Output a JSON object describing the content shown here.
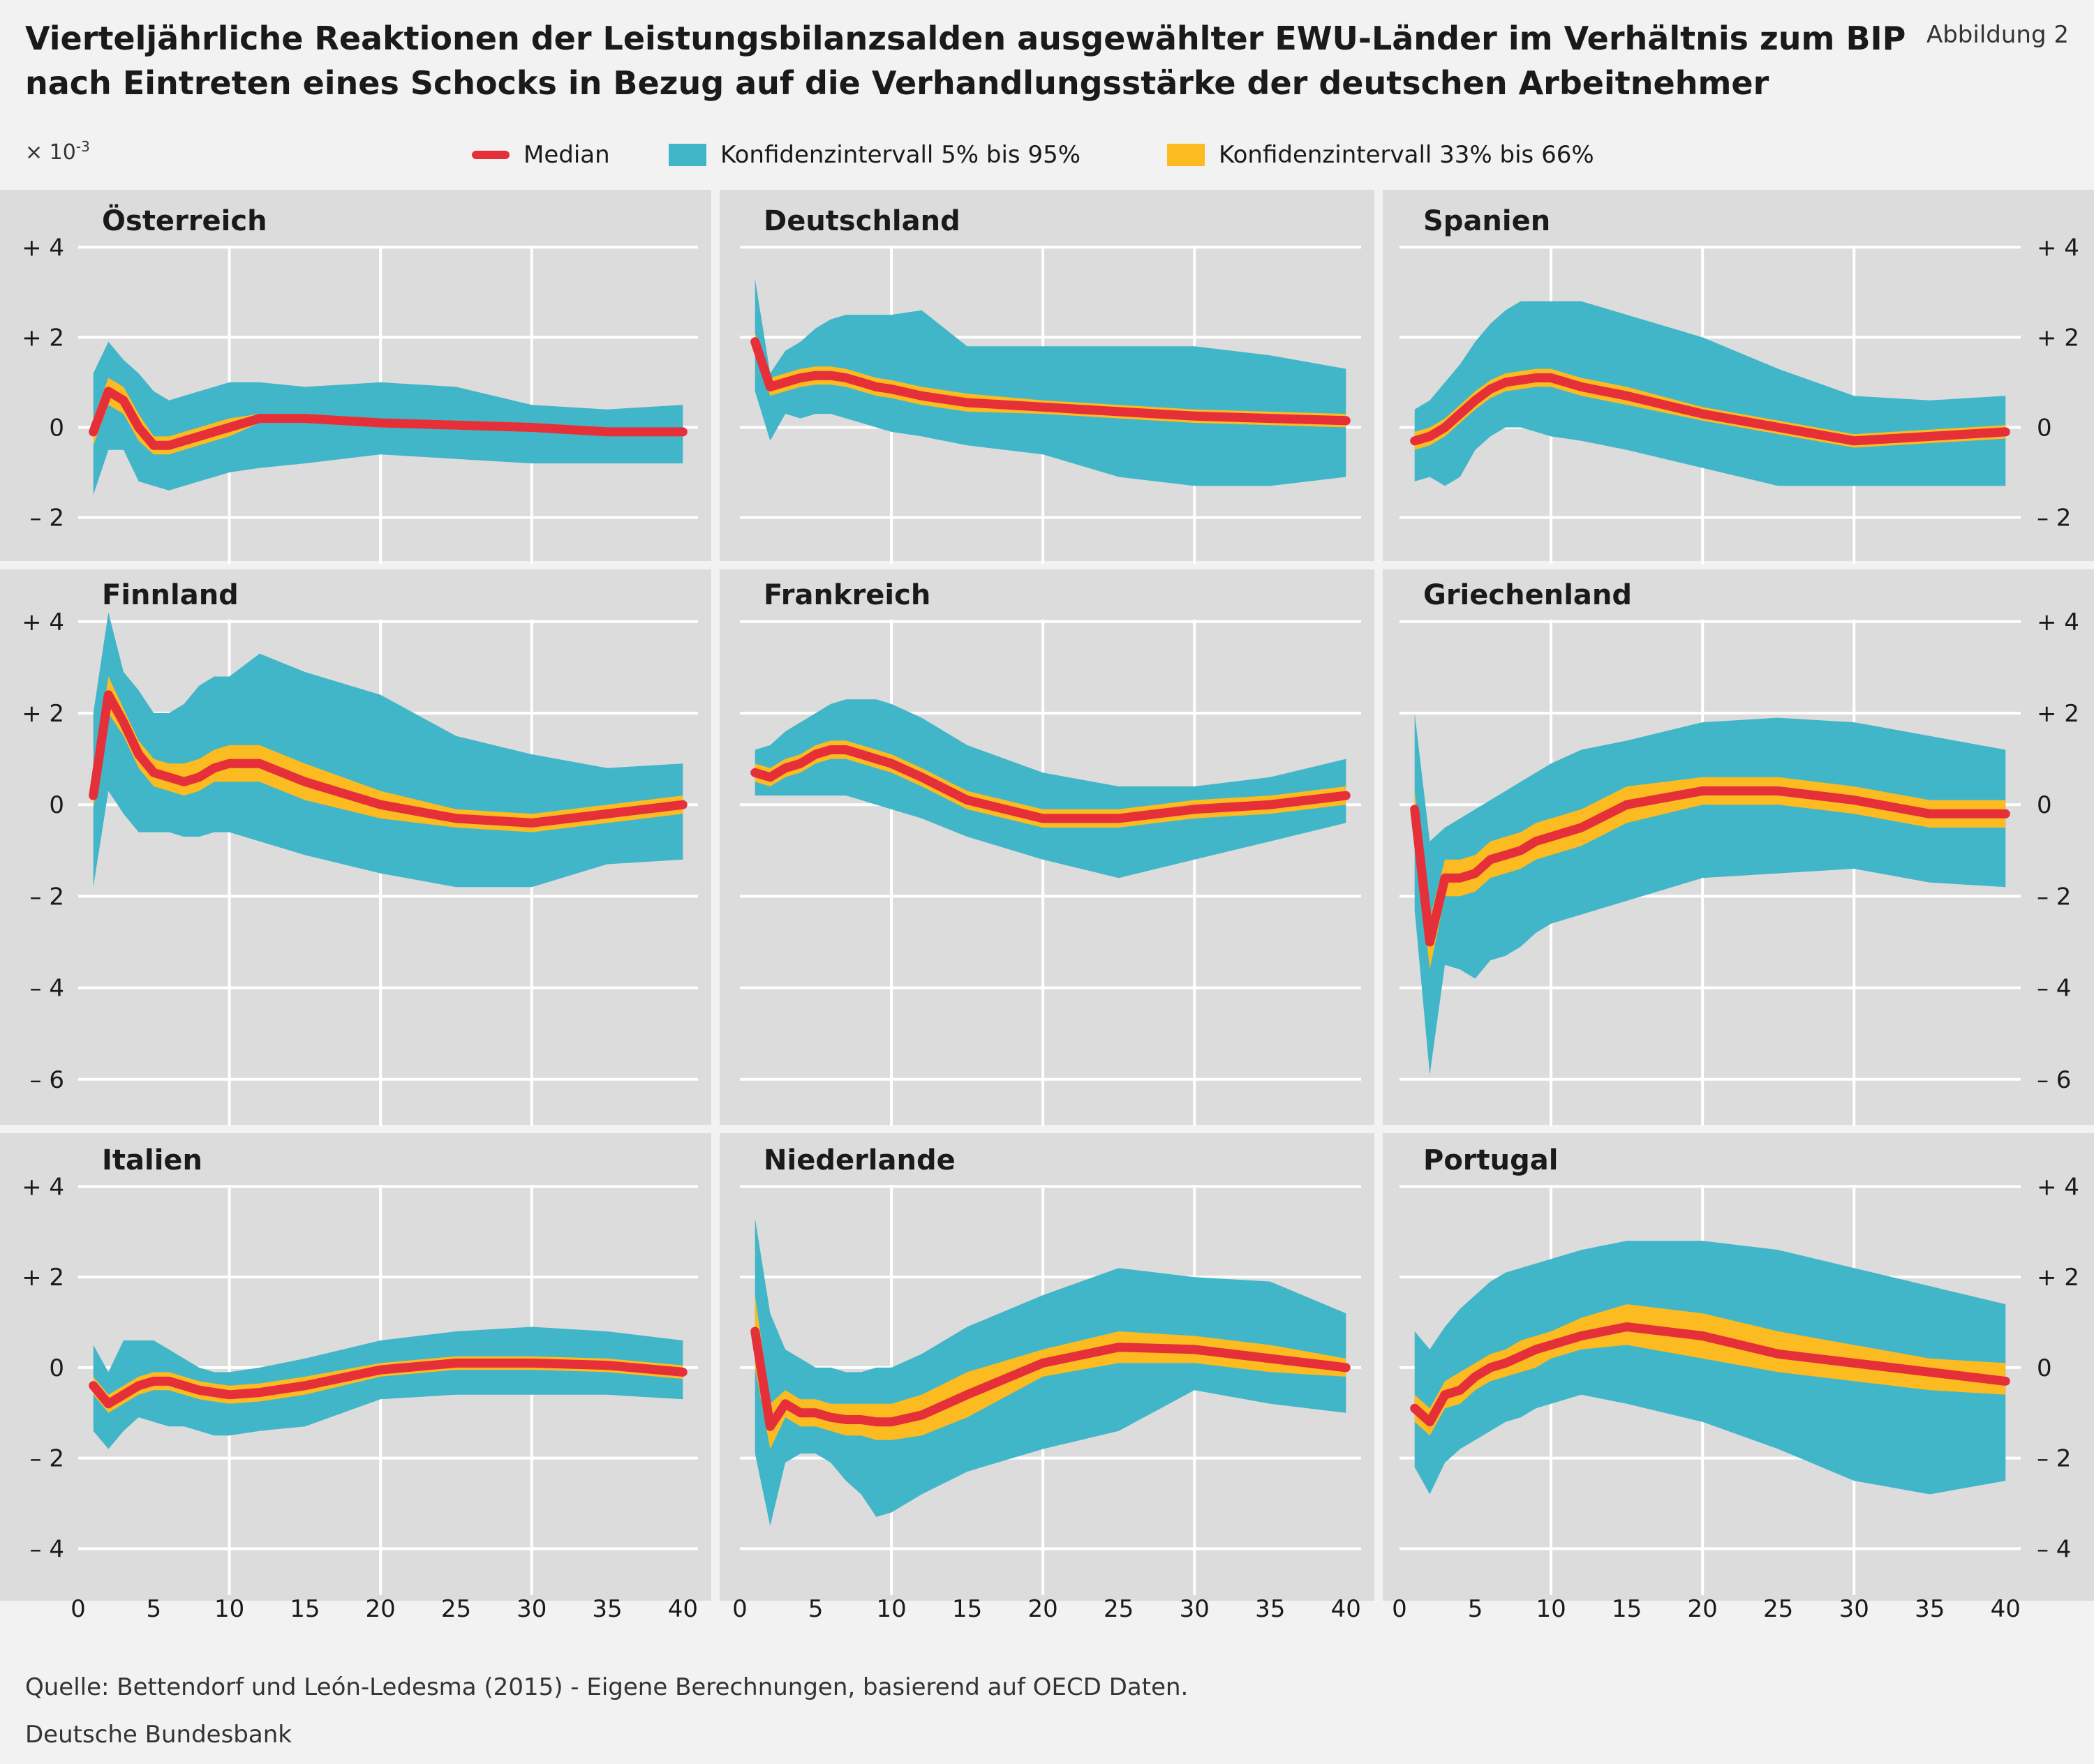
{
  "header": {
    "title_line1": "Vierteljährliche Reaktionen der Leistungsbilanzsalden ausgewählter EWU-Länder im Verhältnis zum BIP",
    "title_line2": "nach Eintreten eines Schocks in Bezug auf die Verhandlungsstärke der deutschen Arbeitnehmer",
    "figure_label": "Abbildung 2",
    "unit_base": "× 10",
    "unit_exp": "-3"
  },
  "legend": {
    "median": "Median",
    "ci_90": "Konfidenzintervall 5% bis 95%",
    "ci_33": "Konfidenzintervall 33% bis 66%"
  },
  "colors": {
    "median": "#e5303a",
    "ci_90": "#41b6c8",
    "ci_33": "#fbbb21",
    "plot_bg": "#dcdcdc",
    "grid": "#ffffff"
  },
  "footer": {
    "source": "Quelle: Bettendorf und León-Ledesma (2015) - Eigene Berechnungen, basierend auf OECD Daten.",
    "credit": "Deutsche Bundesbank"
  },
  "chart_data": [
    {
      "type": "area",
      "title": "Österreich",
      "x": [
        1,
        2,
        3,
        4,
        5,
        6,
        7,
        8,
        9,
        10,
        12,
        15,
        20,
        25,
        30,
        35,
        40
      ],
      "median": [
        -0.1,
        0.8,
        0.6,
        0,
        -0.4,
        -0.4,
        -0.3,
        -0.2,
        -0.1,
        0,
        0.2,
        0.2,
        0.1,
        0.05,
        0,
        -0.1,
        -0.1
      ],
      "ci_90_upper": [
        1.2,
        1.9,
        1.5,
        1.2,
        0.8,
        0.6,
        0.7,
        0.8,
        0.9,
        1,
        1,
        0.9,
        1,
        0.9,
        0.5,
        0.4,
        0.5
      ],
      "ci_90_lower": [
        -1.5,
        -0.5,
        -0.5,
        -1.2,
        -1.3,
        -1.4,
        -1.3,
        -1.2,
        -1.1,
        -1,
        -0.9,
        -0.8,
        -0.6,
        -0.7,
        -0.8,
        -0.8,
        -0.8
      ],
      "ci_33_upper": [
        0.2,
        1.1,
        0.9,
        0.3,
        -0.2,
        -0.2,
        -0.1,
        0,
        0.1,
        0.2,
        0.3,
        0.3,
        0.2,
        0.15,
        0.1,
        0,
        0
      ],
      "ci_33_lower": [
        -0.4,
        0.5,
        0.3,
        -0.3,
        -0.6,
        -0.6,
        -0.5,
        -0.4,
        -0.3,
        -0.2,
        0.1,
        0.1,
        0,
        -0.05,
        -0.1,
        -0.2,
        -0.2
      ]
    },
    {
      "type": "area",
      "title": "Deutschland",
      "x": [
        1,
        2,
        3,
        4,
        5,
        6,
        7,
        8,
        9,
        10,
        12,
        15,
        20,
        25,
        30,
        35,
        40
      ],
      "median": [
        1.9,
        0.9,
        1,
        1.1,
        1.15,
        1.15,
        1.1,
        1,
        0.9,
        0.85,
        0.7,
        0.55,
        0.45,
        0.35,
        0.25,
        0.2,
        0.15
      ],
      "ci_90_upper": [
        3.3,
        1.2,
        1.7,
        1.9,
        2.2,
        2.4,
        2.5,
        2.5,
        2.5,
        2.5,
        2.6,
        1.8,
        1.8,
        1.8,
        1.8,
        1.6,
        1.3
      ],
      "ci_90_lower": [
        0.8,
        -0.3,
        0.3,
        0.2,
        0.3,
        0.3,
        0.2,
        0.1,
        0,
        -0.1,
        -0.2,
        -0.4,
        -0.6,
        -1.1,
        -1.3,
        -1.3,
        -1.1
      ],
      "ci_33_upper": [
        2.1,
        1.1,
        1.2,
        1.3,
        1.35,
        1.35,
        1.3,
        1.2,
        1.1,
        1.05,
        0.9,
        0.75,
        0.6,
        0.5,
        0.4,
        0.35,
        0.3
      ],
      "ci_33_lower": [
        1.7,
        0.7,
        0.8,
        0.9,
        0.95,
        0.95,
        0.9,
        0.8,
        0.7,
        0.65,
        0.5,
        0.35,
        0.3,
        0.2,
        0.1,
        0.05,
        0
      ]
    },
    {
      "type": "area",
      "title": "Spanien",
      "x": [
        1,
        2,
        3,
        4,
        5,
        6,
        7,
        8,
        9,
        10,
        12,
        15,
        20,
        25,
        30,
        35,
        40
      ],
      "median": [
        -0.3,
        -0.2,
        0,
        0.3,
        0.6,
        0.85,
        1,
        1.05,
        1.1,
        1.1,
        0.9,
        0.7,
        0.3,
        0,
        -0.3,
        -0.2,
        -0.1
      ],
      "ci_90_upper": [
        0.4,
        0.6,
        1,
        1.4,
        1.9,
        2.3,
        2.6,
        2.8,
        2.8,
        2.8,
        2.8,
        2.5,
        2,
        1.3,
        0.7,
        0.6,
        0.7
      ],
      "ci_90_lower": [
        -1.2,
        -1.1,
        -1.3,
        -1.1,
        -0.5,
        -0.2,
        0,
        0,
        -0.1,
        -0.2,
        -0.3,
        -0.5,
        -0.9,
        -1.3,
        -1.3,
        -1.3,
        -1.3
      ],
      "ci_33_upper": [
        -0.1,
        0,
        0.2,
        0.5,
        0.8,
        1.05,
        1.2,
        1.25,
        1.3,
        1.3,
        1.1,
        0.9,
        0.45,
        0.15,
        -0.15,
        -0.05,
        0.05
      ],
      "ci_33_lower": [
        -0.5,
        -0.4,
        -0.2,
        0.1,
        0.4,
        0.65,
        0.8,
        0.85,
        0.9,
        0.9,
        0.7,
        0.5,
        0.15,
        -0.15,
        -0.45,
        -0.35,
        -0.25
      ]
    },
    {
      "type": "area",
      "title": "Finnland",
      "x": [
        1,
        2,
        3,
        4,
        5,
        6,
        7,
        8,
        9,
        10,
        12,
        15,
        20,
        25,
        30,
        35,
        40
      ],
      "median": [
        0.2,
        2.4,
        1.8,
        1.1,
        0.7,
        0.6,
        0.5,
        0.6,
        0.8,
        0.9,
        0.9,
        0.5,
        0,
        -0.3,
        -0.4,
        -0.2,
        0
      ],
      "ci_90_upper": [
        2,
        4.2,
        2.9,
        2.5,
        2,
        2,
        2.2,
        2.6,
        2.8,
        2.8,
        3.3,
        2.9,
        2.4,
        1.5,
        1.1,
        0.8,
        0.9
      ],
      "ci_90_lower": [
        -1.8,
        0.3,
        -0.2,
        -0.6,
        -0.6,
        -0.6,
        -0.7,
        -0.7,
        -0.6,
        -0.6,
        -0.8,
        -1.1,
        -1.5,
        -1.8,
        -1.8,
        -1.3,
        -1.2
      ],
      "ci_33_upper": [
        0.5,
        2.8,
        2.1,
        1.4,
        1,
        0.9,
        0.9,
        1,
        1.2,
        1.3,
        1.3,
        0.9,
        0.3,
        -0.1,
        -0.2,
        0,
        0.2
      ],
      "ci_33_lower": [
        -0.1,
        2,
        1.5,
        0.8,
        0.4,
        0.3,
        0.2,
        0.3,
        0.5,
        0.5,
        0.5,
        0.1,
        -0.3,
        -0.5,
        -0.6,
        -0.4,
        -0.2
      ]
    },
    {
      "type": "area",
      "title": "Frankreich",
      "x": [
        1,
        2,
        3,
        4,
        5,
        6,
        7,
        8,
        9,
        10,
        12,
        15,
        20,
        25,
        30,
        35,
        40
      ],
      "median": [
        0.7,
        0.6,
        0.8,
        0.9,
        1.1,
        1.2,
        1.2,
        1.1,
        1,
        0.9,
        0.6,
        0.1,
        -0.3,
        -0.3,
        -0.1,
        0,
        0.2
      ],
      "ci_90_upper": [
        1.2,
        1.3,
        1.6,
        1.8,
        2,
        2.2,
        2.3,
        2.3,
        2.3,
        2.2,
        1.9,
        1.3,
        0.7,
        0.4,
        0.4,
        0.6,
        1
      ],
      "ci_90_lower": [
        0.2,
        0.2,
        0.2,
        0.2,
        0.2,
        0.2,
        0.2,
        0.1,
        0,
        -0.1,
        -0.3,
        -0.7,
        -1.2,
        -1.6,
        -1.2,
        -0.8,
        -0.4
      ],
      "ci_33_upper": [
        0.9,
        0.8,
        1,
        1.1,
        1.3,
        1.4,
        1.4,
        1.3,
        1.2,
        1.1,
        0.8,
        0.3,
        -0.1,
        -0.1,
        0.1,
        0.2,
        0.4
      ],
      "ci_33_lower": [
        0.5,
        0.4,
        0.6,
        0.7,
        0.9,
        1,
        1,
        0.9,
        0.8,
        0.7,
        0.4,
        -0.1,
        -0.5,
        -0.5,
        -0.3,
        -0.2,
        0
      ]
    },
    {
      "type": "area",
      "title": "Griechenland",
      "x": [
        1,
        2,
        3,
        4,
        5,
        6,
        7,
        8,
        9,
        10,
        12,
        15,
        20,
        25,
        30,
        35,
        40
      ],
      "median": [
        -0.1,
        -3,
        -1.6,
        -1.6,
        -1.5,
        -1.2,
        -1.1,
        -1,
        -0.8,
        -0.7,
        -0.5,
        0,
        0.3,
        0.3,
        0.1,
        -0.2,
        -0.2
      ],
      "ci_90_upper": [
        2,
        -0.8,
        -0.5,
        -0.3,
        -0.1,
        0.1,
        0.3,
        0.5,
        0.7,
        0.9,
        1.2,
        1.4,
        1.8,
        1.9,
        1.8,
        1.5,
        1.2
      ],
      "ci_90_lower": [
        -2.3,
        -5.9,
        -3.5,
        -3.6,
        -3.8,
        -3.4,
        -3.3,
        -3.1,
        -2.8,
        -2.6,
        -2.4,
        -2.1,
        -1.6,
        -1.5,
        -1.4,
        -1.7,
        -1.8
      ],
      "ci_33_upper": [
        0.3,
        -2.5,
        -1.2,
        -1.2,
        -1.1,
        -0.8,
        -0.7,
        -0.6,
        -0.4,
        -0.3,
        -0.1,
        0.4,
        0.6,
        0.6,
        0.4,
        0.1,
        0.1
      ],
      "ci_33_lower": [
        -0.5,
        -3.6,
        -2,
        -2,
        -1.9,
        -1.6,
        -1.5,
        -1.4,
        -1.2,
        -1.1,
        -0.9,
        -0.4,
        0,
        0,
        -0.2,
        -0.5,
        -0.5
      ]
    },
    {
      "type": "area",
      "title": "Italien",
      "x": [
        1,
        2,
        3,
        4,
        5,
        6,
        7,
        8,
        9,
        10,
        12,
        15,
        20,
        25,
        30,
        35,
        40
      ],
      "median": [
        -0.4,
        -0.8,
        -0.6,
        -0.4,
        -0.3,
        -0.3,
        -0.4,
        -0.5,
        -0.55,
        -0.6,
        -0.55,
        -0.4,
        -0.05,
        0.1,
        0.1,
        0.05,
        -0.1
      ],
      "ci_90_upper": [
        0.5,
        -0.1,
        0.6,
        0.6,
        0.6,
        0.4,
        0.2,
        0,
        -0.1,
        -0.1,
        0,
        0.2,
        0.6,
        0.8,
        0.9,
        0.8,
        0.6
      ],
      "ci_90_lower": [
        -1.4,
        -1.8,
        -1.4,
        -1.1,
        -1.2,
        -1.3,
        -1.3,
        -1.4,
        -1.5,
        -1.5,
        -1.4,
        -1.3,
        -0.7,
        -0.6,
        -0.6,
        -0.6,
        -0.7
      ],
      "ci_33_upper": [
        -0.2,
        -0.6,
        -0.4,
        -0.2,
        -0.1,
        -0.1,
        -0.2,
        -0.3,
        -0.35,
        -0.4,
        -0.35,
        -0.2,
        0.1,
        0.25,
        0.25,
        0.2,
        0.05
      ],
      "ci_33_lower": [
        -0.6,
        -1,
        -0.8,
        -0.6,
        -0.5,
        -0.5,
        -0.6,
        -0.7,
        -0.75,
        -0.8,
        -0.75,
        -0.6,
        -0.2,
        -0.05,
        -0.05,
        -0.1,
        -0.25
      ]
    },
    {
      "type": "area",
      "title": "Niederlande",
      "x": [
        1,
        2,
        3,
        4,
        5,
        6,
        7,
        8,
        9,
        10,
        12,
        15,
        20,
        25,
        30,
        35,
        40
      ],
      "median": [
        0.8,
        -1.3,
        -0.8,
        -1,
        -1,
        -1.1,
        -1.15,
        -1.15,
        -1.2,
        -1.2,
        -1.05,
        -0.6,
        0.1,
        0.45,
        0.4,
        0.2,
        0
      ],
      "ci_90_upper": [
        3.3,
        1.2,
        0.4,
        0.2,
        0,
        0,
        -0.1,
        -0.1,
        0,
        0,
        0.3,
        0.9,
        1.6,
        2.2,
        2,
        1.9,
        1.2
      ],
      "ci_90_lower": [
        -1.9,
        -3.5,
        -2.1,
        -1.9,
        -1.9,
        -2.1,
        -2.5,
        -2.8,
        -3.3,
        -3.2,
        -2.8,
        -2.3,
        -1.8,
        -1.4,
        -0.5,
        -0.8,
        -1
      ],
      "ci_33_upper": [
        1.6,
        -0.8,
        -0.5,
        -0.7,
        -0.7,
        -0.8,
        -0.8,
        -0.8,
        -0.8,
        -0.8,
        -0.6,
        -0.1,
        0.4,
        0.8,
        0.7,
        0.5,
        0.2
      ],
      "ci_33_lower": [
        0,
        -1.8,
        -1.1,
        -1.3,
        -1.3,
        -1.4,
        -1.5,
        -1.5,
        -1.6,
        -1.6,
        -1.5,
        -1.1,
        -0.2,
        0.1,
        0.1,
        -0.1,
        -0.2
      ]
    },
    {
      "type": "area",
      "title": "Portugal",
      "x": [
        1,
        2,
        3,
        4,
        5,
        6,
        7,
        8,
        9,
        10,
        12,
        15,
        20,
        25,
        30,
        35,
        40
      ],
      "median": [
        -0.9,
        -1.2,
        -0.6,
        -0.5,
        -0.2,
        0,
        0.1,
        0.25,
        0.4,
        0.5,
        0.7,
        0.9,
        0.7,
        0.3,
        0.1,
        -0.1,
        -0.3
      ],
      "ci_90_upper": [
        0.8,
        0.4,
        0.9,
        1.3,
        1.6,
        1.9,
        2.1,
        2.2,
        2.3,
        2.4,
        2.6,
        2.8,
        2.8,
        2.6,
        2.2,
        1.8,
        1.4
      ],
      "ci_90_lower": [
        -2.2,
        -2.8,
        -2.1,
        -1.8,
        -1.6,
        -1.4,
        -1.2,
        -1.1,
        -0.9,
        -0.8,
        -0.6,
        -0.8,
        -1.2,
        -1.8,
        -2.5,
        -2.8,
        -2.5
      ],
      "ci_33_upper": [
        -0.6,
        -0.9,
        -0.3,
        -0.1,
        0.1,
        0.3,
        0.4,
        0.6,
        0.7,
        0.8,
        1.1,
        1.4,
        1.2,
        0.8,
        0.5,
        0.2,
        0.1
      ],
      "ci_33_lower": [
        -1.2,
        -1.5,
        -0.9,
        -0.8,
        -0.5,
        -0.3,
        -0.2,
        -0.1,
        0,
        0.2,
        0.4,
        0.5,
        0.2,
        -0.1,
        -0.3,
        -0.5,
        -0.6
      ]
    }
  ],
  "axes": {
    "x_ticks": [
      0,
      5,
      10,
      15,
      20,
      25,
      30,
      35,
      40
    ],
    "row_y_ticks": [
      {
        "values": [
          4,
          2,
          0,
          -2
        ],
        "labels": [
          "+ 4",
          "+ 2",
          "0",
          "– 2"
        ],
        "ylim": [
          -2.75,
          4.5
        ]
      },
      {
        "values": [
          4,
          2,
          0,
          -2,
          -4,
          -6
        ],
        "labels": [
          "+ 4",
          "+ 2",
          "0",
          "– 2",
          "– 4",
          "– 6"
        ],
        "ylim": [
          -6.75,
          4.5
        ]
      },
      {
        "values": [
          4,
          2,
          0,
          -2,
          -4
        ],
        "labels": [
          "+ 4",
          "+ 2",
          "0",
          "– 2",
          "– 4"
        ],
        "ylim": [
          -4.75,
          4.5
        ]
      }
    ],
    "xlim": [
      0,
      41
    ]
  }
}
